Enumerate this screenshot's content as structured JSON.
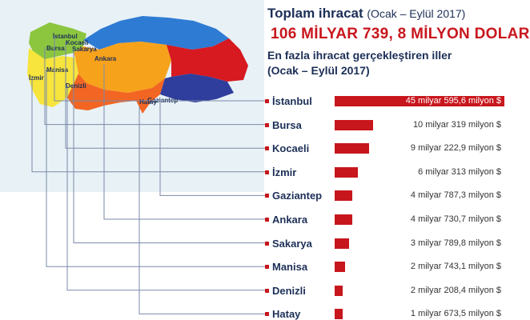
{
  "header": {
    "title_bold": "Toplam ihracat",
    "title_period": "(Ocak – Eylül 2017)",
    "total": "106 MİLYAR 739, 8 MİLYON DOLAR",
    "subtitle_line1": "En fazla ihracat gerçekleştiren iller",
    "subtitle_line2": "(Ocak – Eylül 2017)"
  },
  "map": {
    "labels": [
      "İstanbul",
      "Bursa",
      "Kocaeli",
      "Sakarya",
      "İzmir",
      "Manisa",
      "Denizli",
      "Ankara",
      "Gaziantep",
      "Hatay"
    ],
    "colors": {
      "marmara": "#8cc63f",
      "aegean": "#f7e43c",
      "mediterranean": "#f26522",
      "central": "#f7a21b",
      "black_sea": "#2e7bd3",
      "east": "#d71920",
      "southeast": "#2f3d9c",
      "sea": "#e8f1f6"
    }
  },
  "chart_data": {
    "type": "bar",
    "orientation": "horizontal",
    "unit": "milyon $",
    "categories": [
      "İstanbul",
      "Bursa",
      "Kocaeli",
      "İzmir",
      "Gaziantep",
      "Ankara",
      "Sakarya",
      "Manisa",
      "Denizli",
      "Hatay"
    ],
    "values": [
      45595.6,
      10319,
      9222.9,
      6313,
      4787.3,
      4730.7,
      3789.8,
      2743.1,
      2208.4,
      1673.5
    ],
    "value_labels": [
      "45 milyar 595,6 milyon $",
      "10 milyar 319 milyon $",
      "9 milyar 222,9 milyon $",
      "6 milyar 313 milyon $",
      "4 milyar 787,3 milyon $",
      "4 milyar 730,7 milyon $",
      "3 milyar 789,8 milyon $",
      "2 milyar 743,1 milyon $",
      "2 milyar 208,4 milyon $",
      "1 milyar 673,5 milyon $"
    ],
    "bar_color": "#c8161d"
  }
}
